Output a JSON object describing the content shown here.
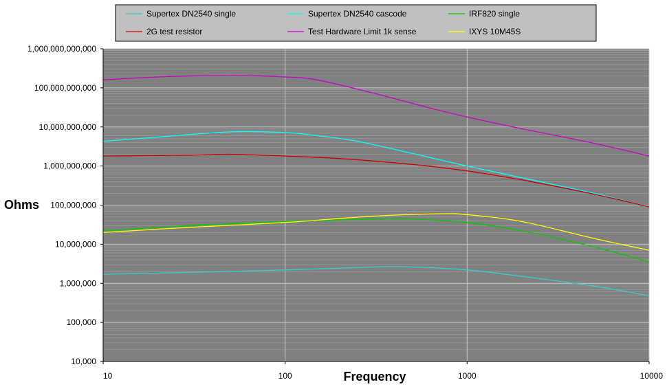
{
  "chart_data": {
    "type": "line",
    "title": "",
    "xlabel": "Frequency",
    "ylabel": "Ohms",
    "xscale": "log",
    "yscale": "log",
    "xlim": [
      10,
      10000
    ],
    "ylim": [
      10000,
      1000000000000
    ],
    "grid": true,
    "plot_background": "#808080",
    "legend_position": "top",
    "xticks": [
      10,
      100,
      1000,
      10000
    ],
    "xtick_labels": [
      "10",
      "100",
      "1000",
      "10000"
    ],
    "yticks": [
      10000,
      100000,
      1000000,
      10000000,
      100000000,
      1000000000,
      10000000000,
      100000000000,
      1000000000000
    ],
    "ytick_labels": [
      "10,000",
      "100,000",
      "1,000,000",
      "10,000,000",
      "100,000,000",
      "1,000,000,000",
      "10,000,000,000",
      "100,000,000,000",
      "1,000,000,000,000"
    ],
    "series": [
      {
        "name": "Supertex DN2540 single",
        "color": "#33cccc",
        "x": [
          10,
          30,
          100,
          300,
          500,
          1000,
          2000,
          5000,
          10000
        ],
        "y": [
          1700000,
          1900000,
          2200000,
          2600000,
          2600000,
          2200000,
          1500000,
          850000,
          480000
        ]
      },
      {
        "name": "Supertex DN2540 cascode",
        "color": "#00ffff",
        "x": [
          10,
          20,
          50,
          100,
          150,
          250,
          500,
          1000,
          2000,
          5000,
          10000
        ],
        "y": [
          4300000000,
          5500000000,
          7500000000,
          7200000000,
          6000000000,
          4300000000,
          2100000000,
          1000000000,
          500000000,
          200000000,
          90000000
        ]
      },
      {
        "name": "IRF820 single",
        "color": "#00cc00",
        "x": [
          10,
          30,
          100,
          300,
          500,
          1000,
          2000,
          5000,
          10000
        ],
        "y": [
          22000000,
          30000000,
          38000000,
          44000000,
          44000000,
          36000000,
          22000000,
          8500000,
          3500000
        ]
      },
      {
        "name": "2G test resistor",
        "color": "#cc0000",
        "x": [
          10,
          30,
          50,
          100,
          200,
          500,
          1000,
          2000,
          5000,
          10000
        ],
        "y": [
          1800000000,
          1900000000,
          2000000000,
          1800000000,
          1550000000,
          1100000000,
          750000000,
          440000000,
          190000000,
          90000000
        ]
      },
      {
        "name": "Test Hardware Limit 1k sense",
        "color": "#cc00cc",
        "x": [
          10,
          20,
          50,
          100,
          150,
          300,
          600,
          1000,
          2000,
          5000,
          10000
        ],
        "y": [
          160000000000,
          190000000000,
          210000000000,
          190000000000,
          160000000000,
          75000000000,
          32000000000,
          18000000000,
          9000000000,
          3800000000,
          1800000000
        ]
      },
      {
        "name": "IXYS 10M45S",
        "color": "#ffff00",
        "x": [
          10,
          30,
          100,
          300,
          700,
          1000,
          2000,
          5000,
          10000
        ],
        "y": [
          20000000,
          27000000,
          36000000,
          52000000,
          60000000,
          57000000,
          38000000,
          14000000,
          7000000
        ]
      }
    ]
  }
}
